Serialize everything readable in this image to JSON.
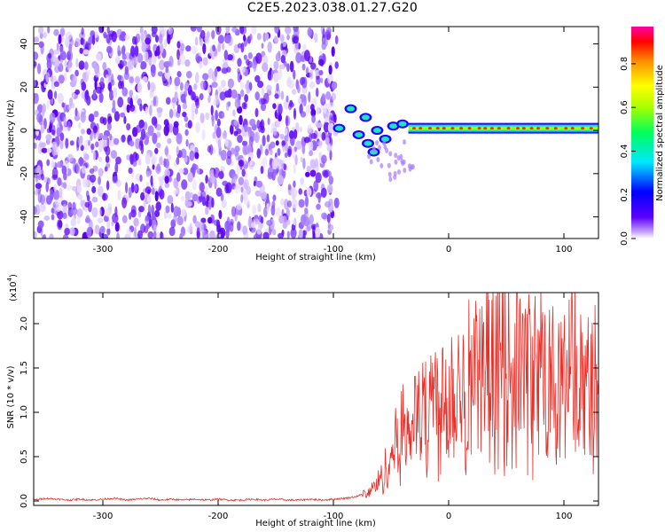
{
  "figure_title": "C2E5.2023.038.01.27.G20",
  "chart_data": [
    {
      "type": "heatmap",
      "xlabel": "Height of straight line (km)",
      "ylabel": "Frequency (Hz)",
      "xlim": [
        -360,
        130
      ],
      "ylim": [
        -50,
        48
      ],
      "x_ticks": [
        -300,
        -200,
        -100,
        0,
        100
      ],
      "x_tick_labels": [
        "-300",
        "-200",
        "-100",
        "0",
        "100"
      ],
      "y_ticks": [
        -40,
        -20,
        0,
        20,
        40
      ],
      "y_tick_labels": [
        "-40",
        "-20",
        "0",
        "20",
        "40"
      ],
      "colorbar": {
        "label": "Normalized spectral amplitude",
        "range": [
          0,
          0.97
        ],
        "ticks": [
          0.0,
          0.2,
          0.4,
          0.6,
          0.8
        ],
        "tick_labels": [
          "0.0",
          "0.2",
          "0.4",
          "0.6",
          "0.8"
        ],
        "colors": [
          "#ffffff",
          "#a57cff",
          "#5b00ff",
          "#0000ff",
          "#00e8ff",
          "#00ff5a",
          "#a8ff00",
          "#ffff00",
          "#ff8a00",
          "#ff0000",
          "#ff00a8"
        ]
      },
      "noise_region": {
        "x_range": [
          -360,
          -97
        ],
        "y_range": [
          -50,
          48
        ]
      },
      "signal_track": {
        "x_range": [
          -100,
          130
        ],
        "frequency_hz": 1
      }
    },
    {
      "type": "line",
      "xlabel": "Height of straight line (km)",
      "ylabel": "SNR (10 * v/v)",
      "y_exponent_label": "(x10",
      "y_exponent": "4",
      "xlim": [
        -360,
        130
      ],
      "ylim": [
        -0.05,
        2.35
      ],
      "x_ticks": [
        -300,
        -200,
        -100,
        0,
        100
      ],
      "x_tick_labels": [
        "-300",
        "-200",
        "-100",
        "0",
        "100"
      ],
      "y_ticks": [
        0.0,
        0.5,
        1.0,
        1.5,
        2.0
      ],
      "y_tick_labels": [
        "0.0",
        "0.5",
        "1.0",
        "1.5",
        "2.0"
      ],
      "line_color": "#e8302a",
      "series": [
        {
          "name": "",
          "x": [
            -360,
            -350,
            -340,
            -330,
            -320,
            -310,
            -300,
            -290,
            -280,
            -270,
            -260,
            -250,
            -240,
            -230,
            -220,
            -210,
            -200,
            -190,
            -180,
            -170,
            -160,
            -150,
            -140,
            -130,
            -120,
            -110,
            -100,
            -90,
            -80,
            -70,
            -65,
            -60,
            -55,
            -50,
            -45,
            -40,
            -35,
            -30,
            -25,
            -20,
            -15,
            -10,
            -5,
            0,
            5,
            10,
            15,
            20,
            25,
            30,
            35,
            40,
            45,
            50,
            55,
            60,
            65,
            70,
            75,
            80,
            85,
            90,
            95,
            100,
            105,
            110,
            115,
            120,
            125,
            130
          ],
          "y": [
            0.01,
            0.03,
            0.02,
            0.01,
            0.02,
            0.01,
            0.02,
            0.03,
            0.01,
            0.02,
            0.03,
            0.01,
            0.02,
            0.01,
            0.02,
            0.01,
            0.02,
            0.01,
            0.01,
            0.02,
            0.01,
            0.02,
            0.01,
            0.01,
            0.02,
            0.01,
            0.02,
            0.03,
            0.05,
            0.1,
            0.15,
            0.22,
            0.35,
            0.5,
            0.7,
            0.8,
            0.85,
            0.95,
            0.9,
            1.05,
            1.2,
            1.1,
            1.25,
            1.2,
            1.35,
            1.3,
            1.4,
            1.45,
            1.35,
            1.5,
            1.4,
            1.55,
            1.45,
            1.6,
            1.5,
            1.55,
            1.45,
            1.5,
            1.4,
            1.5,
            1.35,
            1.45,
            1.3,
            1.35,
            1.4,
            1.35,
            1.3,
            1.3,
            1.25,
            1.2
          ]
        }
      ]
    }
  ]
}
